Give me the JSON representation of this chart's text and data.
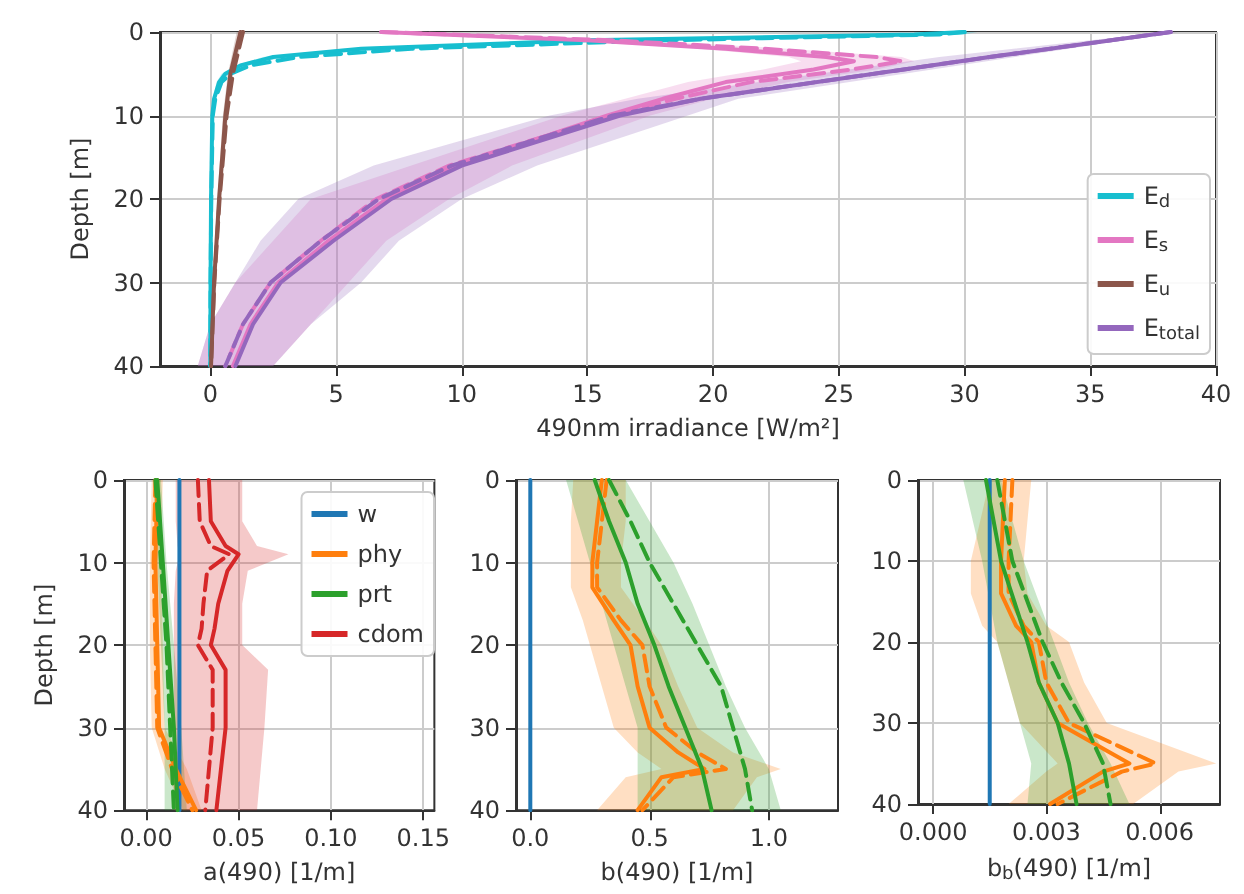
{
  "chart_data": [
    {
      "type": "line",
      "orientation": "horizontal",
      "xlabel": "490nm irradiance [W/m²]",
      "ylabel": "Depth [m]",
      "xlim": [
        -2,
        40
      ],
      "ylim": [
        40,
        0
      ],
      "xticks": [
        0,
        5,
        10,
        15,
        20,
        25,
        30,
        35,
        40
      ],
      "yticks": [
        0,
        10,
        20,
        30,
        40
      ],
      "grid": true,
      "legend": "bottom right",
      "marker": "none",
      "series": [
        {
          "name": "E$_{d}$",
          "color": "#17becf",
          "values": [
            30,
            28,
            15,
            6,
            2.5,
            1.2,
            0.6,
            0.35,
            0.15,
            0.08,
            0.03,
            0.01,
            0
          ],
          "x": [
            0,
            0.3,
            1,
            2,
            3,
            4,
            5,
            6,
            8,
            10,
            20,
            30,
            40
          ],
          "lower": [
            29.5,
            26,
            13.5,
            5.3,
            2.1,
            1,
            0.45,
            0.25,
            0.1,
            0.05,
            0.01,
            0,
            -0.02
          ],
          "upper": [
            30.5,
            30,
            16.5,
            6.8,
            3,
            1.5,
            0.8,
            0.45,
            0.2,
            0.11,
            0.05,
            0.03,
            0.02
          ]
        },
        {
          "color": "#17becf",
          "line_style": "dashed",
          "values": [
            30,
            29,
            18,
            8,
            3.5,
            1.6,
            0.8,
            0.45,
            0.2,
            0.1,
            0.04,
            0.01,
            0
          ],
          "x": [
            0,
            0.3,
            1,
            2,
            3,
            4,
            5,
            6,
            8,
            10,
            20,
            30,
            40
          ]
        },
        {
          "name": "E$_{s}$",
          "color": "#e377c2",
          "values": [
            6.8,
            15,
            20.5,
            24.5,
            25.6,
            24,
            20.5,
            18,
            15.8,
            9.8,
            7,
            4.7,
            2.7,
            1.6,
            0.9
          ],
          "x": [
            0,
            1,
            2,
            3,
            3.5,
            4.5,
            6,
            8,
            10,
            16,
            20,
            25,
            30,
            35,
            40
          ],
          "lower": [
            6.8,
            14,
            19.5,
            23,
            23.5,
            22,
            19,
            16.5,
            14,
            8,
            4,
            2.5,
            1,
            0,
            -0.5
          ],
          "upper": [
            6.8,
            17,
            23,
            27.5,
            28,
            26.5,
            23,
            20,
            17.5,
            12,
            9.5,
            7,
            5.5,
            4,
            2.5
          ]
        },
        {
          "color": "#e377c2",
          "line_style": "dashed",
          "values": [
            6.8,
            16,
            22,
            26.5,
            27.5,
            25.5,
            21.5,
            18.5,
            16,
            9.5,
            6.6,
            4.4,
            2.4,
            1.3,
            0.6
          ],
          "x": [
            0,
            1,
            2,
            3,
            3.5,
            4.5,
            6,
            8,
            10,
            16,
            20,
            25,
            30,
            35,
            40
          ]
        },
        {
          "name": "E$_{u}$",
          "color": "#8c564b",
          "values": [
            1.2,
            0.8,
            0.6,
            0.35,
            0.15,
            0.03
          ],
          "x": [
            0,
            5,
            10,
            20,
            30,
            40
          ],
          "lower": [
            1.05,
            0.7,
            0.5,
            0.28,
            0.1,
            0
          ],
          "upper": [
            1.35,
            0.9,
            0.7,
            0.42,
            0.2,
            0.06
          ]
        },
        {
          "color": "#8c564b",
          "line_style": "dashed",
          "values": [
            1.3,
            0.9,
            0.65,
            0.37,
            0.16,
            0.03
          ],
          "x": [
            0,
            5,
            10,
            20,
            30,
            40
          ]
        },
        {
          "name": "E$_{total}$",
          "color": "#9467bd",
          "values": [
            38.2,
            31,
            19.5,
            16.3,
            10,
            7.2,
            4.9,
            2.8,
            1.7,
            1
          ],
          "x": [
            0,
            3,
            8,
            10,
            16,
            20,
            25,
            30,
            35,
            40
          ],
          "lower": [
            38,
            29,
            17,
            13.5,
            6.5,
            3.5,
            2,
            1,
            0,
            -0.5
          ],
          "upper": [
            38.5,
            32,
            21,
            19,
            13,
            10,
            7.5,
            6,
            4,
            2.5
          ]
        },
        {
          "color": "#9467bd",
          "line_style": "dashed",
          "values": [
            38.2,
            31,
            19.5,
            16,
            9.6,
            6.7,
            4.4,
            2.4,
            1.3,
            0.6
          ],
          "x": [
            0,
            3,
            8,
            10,
            16,
            20,
            25,
            30,
            35,
            40
          ]
        }
      ]
    },
    {
      "type": "line",
      "orientation": "horizontal",
      "xlabel": "a(490) [1/m]",
      "ylabel": "Depth [m]",
      "xlim": [
        -0.012,
        0.156
      ],
      "ylim": [
        40,
        0
      ],
      "xticks": [
        {
          "value": 0,
          "label": "0.00"
        },
        {
          "value": 0.05,
          "label": "0.05"
        },
        {
          "value": 0.1,
          "label": "0.10"
        },
        {
          "value": 0.15,
          "label": "0.15"
        }
      ],
      "yticks": [
        0,
        10,
        20,
        30,
        40
      ],
      "grid": true,
      "legend": "top right",
      "marker": "none",
      "series": [
        {
          "name": "w",
          "color": "#1f77b4",
          "values": [
            0.018,
            0.018
          ],
          "x": [
            0,
            40
          ]
        },
        {
          "name": "phy",
          "color": "#ff7f0e",
          "values": [
            0.006,
            0.005,
            0.006,
            0.007,
            0.016,
            0.027
          ],
          "x": [
            0,
            10,
            20,
            30,
            35,
            40
          ],
          "lower": [
            0.003,
            0.002,
            0.002,
            0.003,
            0.01,
            0.02
          ],
          "upper": [
            0.009,
            0.008,
            0.009,
            0.01,
            0.022,
            0.03
          ]
        },
        {
          "color": "#ff7f0e",
          "line_style": "dashed",
          "values": [
            0.005,
            0.004,
            0.005,
            0.006,
            0.014,
            0.025
          ],
          "x": [
            0,
            10,
            20,
            30,
            35,
            40
          ]
        },
        {
          "name": "prt",
          "color": "#2ca02c",
          "values": [
            0.006,
            0.009,
            0.012,
            0.015,
            0.017
          ],
          "x": [
            0,
            10,
            20,
            30,
            40
          ],
          "lower": [
            0.004,
            0.006,
            0.008,
            0.01,
            0.01
          ],
          "upper": [
            0.008,
            0.011,
            0.015,
            0.019,
            0.022
          ]
        },
        {
          "color": "#2ca02c",
          "line_style": "dashed",
          "values": [
            0.005,
            0.008,
            0.011,
            0.013,
            0.015
          ],
          "x": [
            0,
            10,
            20,
            30,
            40
          ]
        },
        {
          "name": "cdom",
          "color": "#d62728",
          "values": [
            0.034,
            0.035,
            0.043,
            0.05,
            0.044,
            0.039,
            0.037,
            0.035,
            0.043,
            0.043,
            0.038
          ],
          "x": [
            0,
            5,
            8,
            9,
            11,
            15,
            18,
            20,
            23,
            30,
            40
          ],
          "lower": [
            0.016,
            0.016,
            0.017,
            0.018,
            0.016,
            0.015,
            0.015,
            0.015,
            0.015,
            0.015,
            0.015
          ],
          "upper": [
            0.052,
            0.052,
            0.06,
            0.077,
            0.055,
            0.052,
            0.052,
            0.052,
            0.066,
            0.064,
            0.06
          ]
        },
        {
          "color": "#d62728",
          "line_style": "dashed",
          "values": [
            0.028,
            0.029,
            0.035,
            0.045,
            0.033,
            0.031,
            0.03,
            0.028,
            0.036,
            0.036,
            0.032
          ],
          "x": [
            0,
            5,
            8,
            9,
            11,
            15,
            18,
            20,
            23,
            30,
            40
          ]
        }
      ]
    },
    {
      "type": "line",
      "orientation": "horizontal",
      "xlabel": "b(490) [1/m]",
      "xlim": [
        -0.06,
        1.29
      ],
      "ylim": [
        40,
        0
      ],
      "xticks": [
        {
          "value": 0,
          "label": "0.0"
        },
        {
          "value": 0.5,
          "label": "0.5"
        },
        {
          "value": 1,
          "label": "1.0"
        }
      ],
      "yticks": [
        0,
        10,
        20,
        30,
        40
      ],
      "grid": true,
      "marker": "none",
      "series": [
        {
          "color": "#1f77b4",
          "values": [
            0,
            0
          ],
          "x": [
            0,
            40
          ]
        },
        {
          "color": "#ff7f0e",
          "values": [
            0.3,
            0.28,
            0.26,
            0.26,
            0.35,
            0.42,
            0.45,
            0.5,
            0.62,
            0.73,
            0.55,
            0.45
          ],
          "x": [
            0,
            5,
            10,
            13,
            17,
            20,
            25,
            30,
            33,
            35,
            36,
            40
          ],
          "lower": [
            0.18,
            0.17,
            0.17,
            0.17,
            0.22,
            0.25,
            0.3,
            0.35,
            0.45,
            0.55,
            0.4,
            0.28
          ],
          "upper": [
            0.4,
            0.4,
            0.38,
            0.38,
            0.48,
            0.55,
            0.62,
            0.7,
            0.85,
            1.05,
            0.95,
            0.85
          ]
        },
        {
          "color": "#ff7f0e",
          "line_style": "dashed",
          "values": [
            0.32,
            0.3,
            0.28,
            0.28,
            0.38,
            0.47,
            0.5,
            0.57,
            0.7,
            0.82,
            0.6,
            0.47
          ],
          "x": [
            0,
            5,
            10,
            13,
            17,
            20,
            25,
            30,
            33,
            35,
            36,
            40
          ]
        },
        {
          "color": "#2ca02c",
          "values": [
            0.27,
            0.33,
            0.4,
            0.45,
            0.52,
            0.58,
            0.65,
            0.72,
            0.76
          ],
          "x": [
            0,
            5,
            10,
            15,
            20,
            25,
            30,
            35,
            40
          ],
          "lower": [
            0.15,
            0.2,
            0.25,
            0.3,
            0.35,
            0.4,
            0.45,
            0.45,
            0.45
          ],
          "upper": [
            0.4,
            0.5,
            0.6,
            0.68,
            0.75,
            0.82,
            0.9,
            1,
            1.05
          ]
        },
        {
          "color": "#2ca02c",
          "line_style": "dashed",
          "values": [
            0.33,
            0.42,
            0.5,
            0.6,
            0.7,
            0.8,
            0.85,
            0.9,
            0.93
          ],
          "x": [
            0,
            5,
            10,
            15,
            20,
            25,
            30,
            35,
            40
          ]
        }
      ]
    },
    {
      "type": "line",
      "orientation": "horizontal",
      "xlabel": "b$_{b}$(490) [1/m]",
      "xlim": [
        -0.0004,
        0.0076
      ],
      "ylim": [
        40,
        0
      ],
      "xticks": [
        {
          "value": 0,
          "label": "0.000"
        },
        {
          "value": 0.003,
          "label": "0.003"
        },
        {
          "value": 0.006,
          "label": "0.006"
        }
      ],
      "yticks": [
        0,
        10,
        20,
        30,
        40
      ],
      "grid": true,
      "marker": "none",
      "series": [
        {
          "color": "#1f77b4",
          "values": [
            0.0015,
            0.0015
          ],
          "x": [
            0,
            40
          ]
        },
        {
          "color": "#ff7f0e",
          "values": [
            0.0019,
            0.0018,
            0.0018,
            0.0022,
            0.0026,
            0.0028,
            0.0033,
            0.0052,
            0.0045,
            0.0031
          ],
          "x": [
            0,
            10,
            14,
            18,
            20,
            25,
            30,
            35,
            36,
            40
          ],
          "lower": [
            0.0015,
            0.001,
            0.001,
            0.0013,
            0.0017,
            0.002,
            0.0023,
            0.0033,
            0.003,
            0.002
          ],
          "upper": [
            0.0026,
            0.0024,
            0.0025,
            0.003,
            0.0036,
            0.004,
            0.0046,
            0.0075,
            0.0065,
            0.0053
          ]
        },
        {
          "color": "#ff7f0e",
          "line_style": "dashed",
          "values": [
            0.0021,
            0.002,
            0.002,
            0.0024,
            0.0028,
            0.003,
            0.0036,
            0.0059,
            0.005,
            0.0033
          ],
          "x": [
            0,
            10,
            14,
            18,
            20,
            25,
            30,
            35,
            36,
            40
          ]
        },
        {
          "color": "#2ca02c",
          "values": [
            0.0014,
            0.0018,
            0.0025,
            0.0028,
            0.0033,
            0.0036,
            0.0038
          ],
          "x": [
            0,
            10,
            20,
            25,
            30,
            35,
            40
          ],
          "lower": [
            0.0008,
            0.0013,
            0.0017,
            0.002,
            0.0023,
            0.0026,
            0.0025
          ],
          "upper": [
            0.0018,
            0.0024,
            0.0032,
            0.0036,
            0.0041,
            0.0047,
            0.0052
          ]
        },
        {
          "color": "#2ca02c",
          "line_style": "dashed",
          "values": [
            0.0017,
            0.0021,
            0.0029,
            0.0034,
            0.004,
            0.0045,
            0.0047
          ],
          "x": [
            0,
            10,
            20,
            25,
            30,
            35,
            40
          ]
        }
      ]
    }
  ]
}
